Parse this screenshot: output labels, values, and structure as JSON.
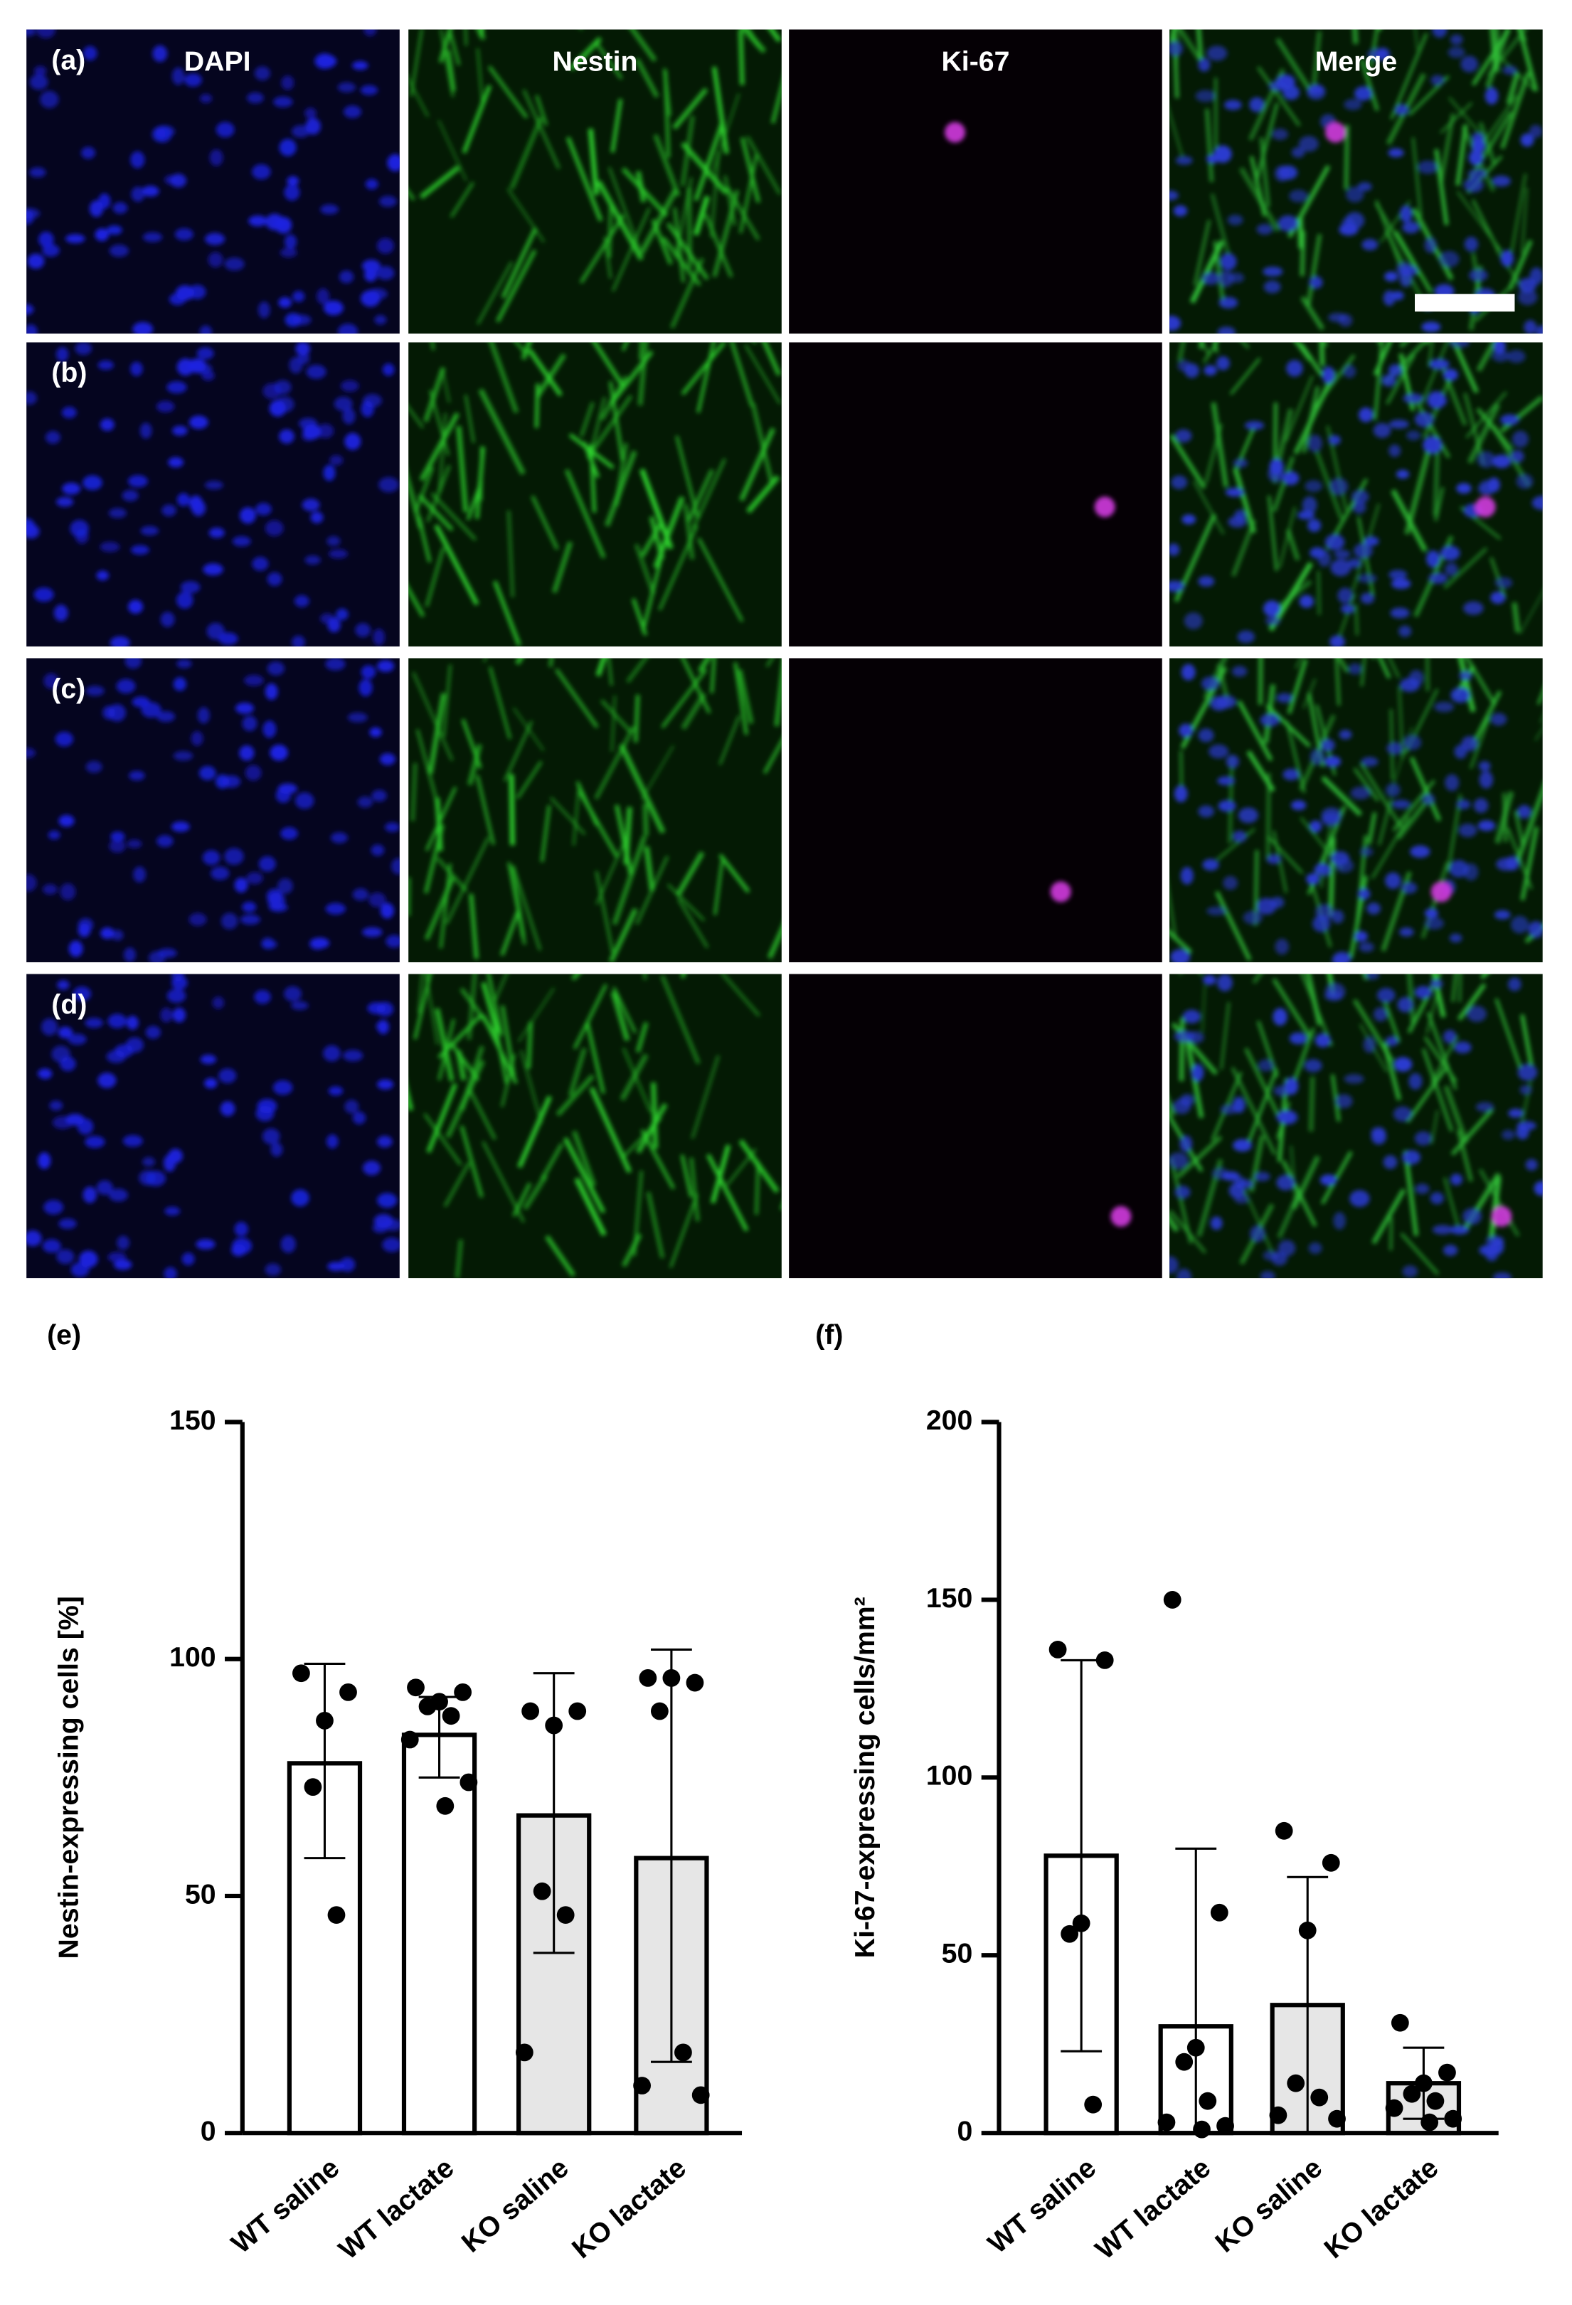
{
  "image_grid": {
    "columns": [
      "DAPI",
      "Nestin",
      "Ki-67",
      "Merge"
    ],
    "rows": [
      "(a)",
      "(b)",
      "(c)",
      "(d)"
    ]
  },
  "chart_data": [
    {
      "type": "bar",
      "title": "(e)",
      "y_label": "Nestin-expressing cells [%]",
      "categories": [
        "WT saline",
        "WT lactate",
        "KO saline",
        "KO lactate"
      ],
      "values": [
        78,
        84,
        67,
        58
      ],
      "error_low": [
        58,
        75,
        38,
        15
      ],
      "error_high": [
        99,
        92,
        97,
        102
      ],
      "points": [
        [
          97,
          93,
          87,
          73,
          46
        ],
        [
          94,
          93,
          91,
          90,
          88,
          83,
          74,
          69
        ],
        [
          89,
          89,
          86,
          51,
          46,
          17
        ],
        [
          96,
          95,
          96,
          89,
          17,
          10,
          8
        ]
      ],
      "colors": [
        "#ffffff",
        "#ffffff",
        "#e6e6e6",
        "#e6e6e6"
      ],
      "ylim": [
        0,
        150
      ],
      "yticks": [
        0,
        50,
        100,
        150
      ]
    },
    {
      "type": "bar",
      "title": "(f)",
      "y_label": "Ki-67-expressing cells/mm²",
      "categories": [
        "WT saline",
        "WT lactate",
        "KO saline",
        "KO lactate"
      ],
      "values": [
        78,
        30,
        36,
        14
      ],
      "error_low": [
        23,
        0,
        0,
        4
      ],
      "error_high": [
        133,
        80,
        72,
        24
      ],
      "points": [
        [
          136,
          133,
          59,
          56,
          8
        ],
        [
          150,
          62,
          24,
          20,
          9,
          3,
          2,
          1
        ],
        [
          85,
          76,
          57,
          14,
          10,
          5,
          4
        ],
        [
          31,
          17,
          14,
          11,
          9,
          7,
          4,
          3
        ]
      ],
      "colors": [
        "#ffffff",
        "#ffffff",
        "#e6e6e6",
        "#e6e6e6"
      ],
      "ylim": [
        0,
        200
      ],
      "yticks": [
        0,
        50,
        100,
        150,
        200
      ]
    }
  ]
}
